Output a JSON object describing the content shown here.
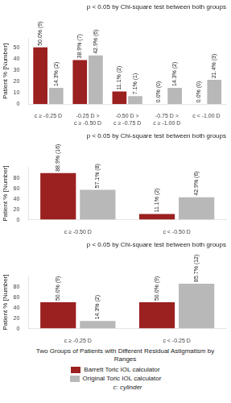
{
  "chart_data": [
    {
      "type": "bar",
      "title": "p < 0.05 by Chi-square test between both groups",
      "categories": [
        "c ≥ -0.25 D",
        "-0.25 D > c ≥ -0.50 D",
        "-0.50 D > c ≥ -0.75 D",
        "-0.75 D > c ≥ -1.00 D",
        "c < -1.00 D"
      ],
      "series": [
        {
          "name": "Barrett Toric IOL calculator",
          "color": "#9b2020",
          "values": [
            50.0,
            38.9,
            11.1,
            0.0,
            0.0
          ],
          "value_labels": [
            "50.0% (9)",
            "38.9% (7)",
            "11.1% (2)",
            "0.0% (0)",
            "0.0% (0)"
          ]
        },
        {
          "name": "Original Toric IOL calculator",
          "color": "#b8b8b8",
          "values": [
            14.3,
            42.9,
            7.1,
            14.3,
            21.4
          ],
          "value_labels": [
            "14.3% (2)",
            "42.9% (6)",
            "7.1% (1)",
            "14.3% (2)",
            "21.4% (3)"
          ]
        }
      ],
      "ylabel": "Patient % [Number]",
      "ylim": [
        0,
        58
      ],
      "yticks": [
        0,
        10,
        20,
        30,
        40,
        50
      ],
      "grid": false,
      "data_labels": true
    },
    {
      "type": "bar",
      "title": "p < 0.05 by Chi-square test between both groups",
      "categories": [
        "c ≥ -0.50 D",
        "c < -0.50 D"
      ],
      "series": [
        {
          "name": "Barrett Toric IOL calculator",
          "color": "#9b2020",
          "values": [
            88.9,
            11.1
          ],
          "value_labels": [
            "88.9% (16)",
            "11.1% (2)"
          ]
        },
        {
          "name": "Original Toric IOL calculator",
          "color": "#b8b8b8",
          "values": [
            57.1,
            42.9
          ],
          "value_labels": [
            "57.1% (8)",
            "42.9% (6)"
          ]
        }
      ],
      "ylabel": "Patient % [Number]",
      "ylim": [
        0,
        100
      ],
      "yticks": [
        0,
        20,
        40,
        60,
        80
      ],
      "grid": false,
      "data_labels": true
    },
    {
      "type": "bar",
      "title": "p < 0.05 by Chi-square test between both groups",
      "categories": [
        "c ≥ -0.25 D",
        "c < -0.25 D"
      ],
      "series": [
        {
          "name": "Barrett Toric IOL calculator",
          "color": "#9b2020",
          "values": [
            50.0,
            50.0
          ],
          "value_labels": [
            "50.0% (9)",
            "50.0% (9)"
          ]
        },
        {
          "name": "Original Toric IOL calculator",
          "color": "#b8b8b8",
          "values": [
            14.3,
            85.7
          ],
          "value_labels": [
            "14.3% (2)",
            "85.7% (12)"
          ]
        }
      ],
      "ylabel": "Patient % [Number]",
      "xlabel": "Two Groups of Patients with Different Residual Astigmatism by Ranges",
      "ylim": [
        0,
        100
      ],
      "yticks": [
        0,
        20,
        40,
        60,
        80
      ],
      "grid": false,
      "data_labels": true,
      "legend": "bottom",
      "annotation": "c: cylinder"
    }
  ]
}
